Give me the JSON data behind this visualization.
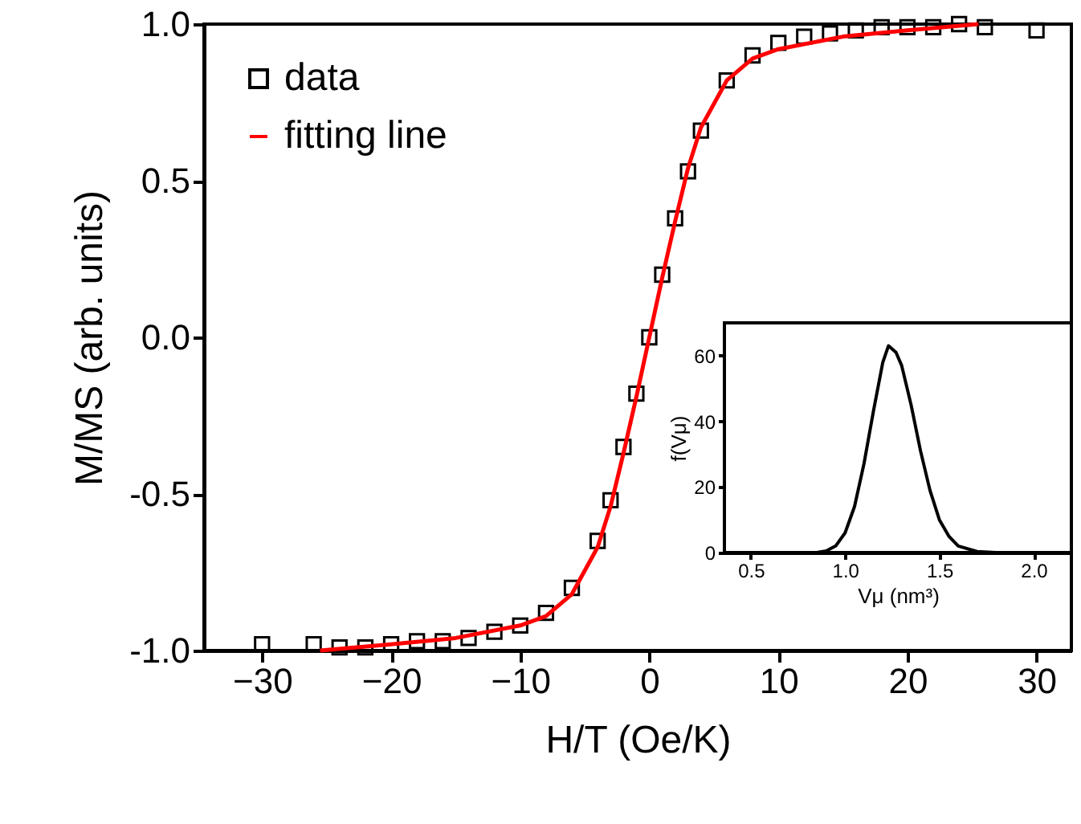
{
  "chart_data": [
    {
      "type": "scatter",
      "xlabel": "H/T (Oe/K)",
      "ylabel": "M/MS (arb. units)",
      "xlim": [
        -34.5,
        32.7
      ],
      "xticks": [
        -30,
        -20,
        -10,
        0,
        10,
        20,
        30
      ],
      "ylim": [
        -1.0,
        1.0
      ],
      "yticks": [
        {
          "value": -1.0,
          "label": "-1.0"
        },
        {
          "value": -0.5,
          "label": "-0.5"
        },
        {
          "value": 0,
          "label": "0.0"
        },
        {
          "value": 0.5,
          "label": "0.5"
        },
        {
          "value": 1.0,
          "label": "1.0"
        }
      ],
      "grid": false,
      "legend": "top left",
      "series": [
        {
          "name": "data",
          "type": "scatter",
          "marker": "square",
          "color": "#000000",
          "x": [
            -30,
            -26,
            -24,
            -22,
            -20,
            -18,
            -16,
            -14,
            -12,
            -10,
            -8,
            -6,
            -4,
            -3,
            -2,
            -1,
            0,
            1,
            2,
            3,
            4,
            6,
            8,
            10,
            12,
            14,
            16,
            18,
            20,
            22,
            24,
            26,
            30
          ],
          "values": [
            -0.98,
            -0.98,
            -0.99,
            -0.99,
            -0.98,
            -0.97,
            -0.97,
            -0.96,
            -0.94,
            -0.92,
            -0.88,
            -0.8,
            -0.65,
            -0.52,
            -0.35,
            -0.18,
            0,
            0.2,
            0.38,
            0.53,
            0.66,
            0.82,
            0.9,
            0.94,
            0.96,
            0.97,
            0.98,
            0.99,
            0.99,
            0.99,
            1.0,
            0.99,
            0.98
          ]
        },
        {
          "name": "fitting line",
          "type": "line",
          "line_style": "solid",
          "color": "#ff0000",
          "x": [
            -25.5,
            -20,
            -15,
            -10,
            -8,
            -6,
            -4,
            -3,
            -2,
            -1,
            0,
            1,
            2,
            3,
            4,
            6,
            8,
            10,
            15,
            20,
            25.5
          ],
          "values": [
            -1.0,
            -0.98,
            -0.96,
            -0.92,
            -0.89,
            -0.82,
            -0.67,
            -0.54,
            -0.37,
            -0.19,
            0,
            0.19,
            0.37,
            0.54,
            0.67,
            0.82,
            0.89,
            0.92,
            0.96,
            0.98,
            1.0
          ]
        }
      ]
    },
    {
      "type": "line",
      "xlabel": "Vμ (nm³)",
      "ylabel": "f(Vμ)",
      "xlim": [
        0.36,
        2.2
      ],
      "xticks": [
        {
          "value": 0.5,
          "label": "0.5"
        },
        {
          "value": 1.0,
          "label": "1.0"
        },
        {
          "value": 1.5,
          "label": "1.5"
        },
        {
          "value": 2.0,
          "label": "2.0"
        }
      ],
      "ylim": [
        0,
        70
      ],
      "yticks": [
        0,
        20,
        40,
        60
      ],
      "grid": false,
      "legend": false,
      "series": [
        {
          "color": "#000000",
          "line_style": "solid",
          "x": [
            0.36,
            0.85,
            0.9,
            0.95,
            1.0,
            1.05,
            1.1,
            1.15,
            1.2,
            1.23,
            1.27,
            1.3,
            1.35,
            1.4,
            1.45,
            1.5,
            1.55,
            1.6,
            1.7,
            1.8,
            2.2
          ],
          "values": [
            0,
            0,
            0.5,
            2,
            6,
            14,
            27,
            43,
            58,
            63,
            61,
            57,
            45,
            31,
            19,
            10,
            5,
            2,
            0.3,
            0,
            0
          ]
        }
      ]
    }
  ]
}
